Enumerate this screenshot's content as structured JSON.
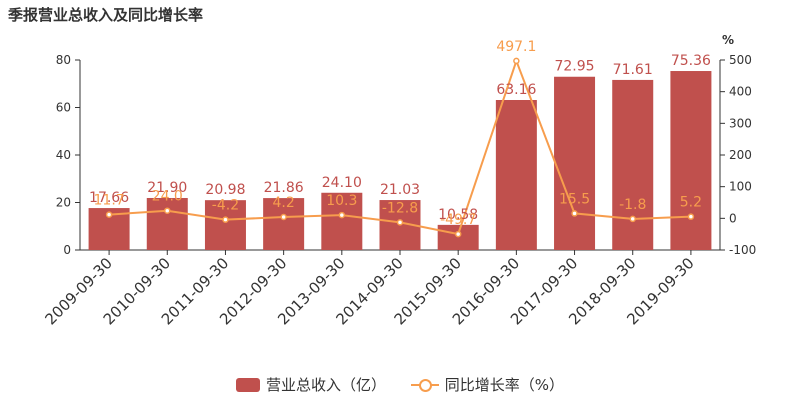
{
  "chart_data": {
    "type": "bar",
    "title": "季报营业总收入及同比增长率",
    "categories": [
      "2009-09-30",
      "2010-09-30",
      "2011-09-30",
      "2012-09-30",
      "2013-09-30",
      "2014-09-30",
      "2015-09-30",
      "2016-09-30",
      "2017-09-30",
      "2018-09-30",
      "2019-09-30"
    ],
    "series": [
      {
        "name": "营业总收入（亿）",
        "type": "bar",
        "axis": "left",
        "color": "#c0504d",
        "values": [
          17.66,
          21.9,
          20.98,
          21.86,
          24.1,
          21.03,
          10.58,
          63.16,
          72.95,
          71.61,
          75.36
        ],
        "labels": [
          "17.66",
          "21.90",
          "20.98",
          "21.86",
          "24.10",
          "21.03",
          "10.58",
          "63.16",
          "72.95",
          "71.61",
          "75.36"
        ]
      },
      {
        "name": "同比增长率（%）",
        "type": "line",
        "axis": "right",
        "color": "#f79d4d",
        "values": [
          11.7,
          24.0,
          -4.2,
          4.2,
          10.3,
          -12.8,
          -49.7,
          497.1,
          15.5,
          -1.8,
          5.2
        ],
        "labels": [
          "11.7",
          "24.0",
          "-4.2",
          "4.2",
          "10.3",
          "-12.8",
          "-49.7",
          "497.1",
          "15.5",
          "-1.8",
          "5.2"
        ]
      }
    ],
    "y_left": {
      "min": 0,
      "max": 80,
      "ticks": [
        "0",
        "20",
        "40",
        "60",
        "80"
      ]
    },
    "y_right": {
      "min": -100,
      "max": 500,
      "unit": "%",
      "ticks": [
        "-100",
        "0",
        "100",
        "200",
        "300",
        "400",
        "500"
      ]
    },
    "grid": false,
    "legend_position": "bottom"
  }
}
